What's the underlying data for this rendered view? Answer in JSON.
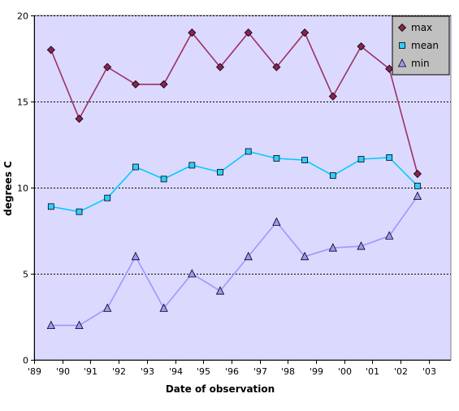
{
  "chart_data": {
    "type": "line",
    "xlabel": "Date of observation",
    "ylabel": "degrees C",
    "ylim": [
      0,
      20
    ],
    "xlim": [
      1989,
      2003.5
    ],
    "y_ticks": [
      0,
      5,
      10,
      15,
      20
    ],
    "x_ticks": [
      {
        "x": 1989,
        "label": "'89"
      },
      {
        "x": 1990,
        "label": "'90"
      },
      {
        "x": 1991,
        "label": "'91"
      },
      {
        "x": 1992,
        "label": "'92"
      },
      {
        "x": 1993,
        "label": "'93"
      },
      {
        "x": 1994,
        "label": "'94"
      },
      {
        "x": 1995,
        "label": "'95"
      },
      {
        "x": 1996,
        "label": "'96"
      },
      {
        "x": 1997,
        "label": "'97"
      },
      {
        "x": 1998,
        "label": "'98"
      },
      {
        "x": 1999,
        "label": "'99"
      },
      {
        "x": 2000,
        "label": "'00"
      },
      {
        "x": 2001,
        "label": "'01"
      },
      {
        "x": 2002,
        "label": "'02"
      },
      {
        "x": 2003,
        "label": "'03"
      }
    ],
    "grid": {
      "horizontal": true,
      "style": "dotted"
    },
    "plot_background": "#dcd9ff",
    "legend_position": "top-right",
    "x": [
      1989.6,
      1990.6,
      1991.6,
      1992.6,
      1993.6,
      1994.6,
      1995.6,
      1996.6,
      1997.6,
      1998.6,
      1999.6,
      2000.6,
      2001.6,
      2002.6
    ],
    "series": [
      {
        "name": "max",
        "color": "#8b2252",
        "line_color": "#993366",
        "marker": "diamond",
        "values": [
          18,
          14,
          17,
          16,
          16,
          19,
          17,
          19,
          17,
          19,
          15.3,
          18.2,
          16.9,
          10.8
        ]
      },
      {
        "name": "mean",
        "color": "#33ccff",
        "line_color": "#00ccff",
        "marker": "square",
        "values": [
          8.9,
          8.6,
          9.4,
          11.2,
          10.5,
          11.3,
          10.9,
          12.1,
          11.7,
          11.6,
          10.7,
          11.65,
          11.75,
          10.1
        ]
      },
      {
        "name": "min",
        "color": "#9999ff",
        "line_color": "#9999ff",
        "marker": "triangle",
        "values": [
          2,
          2,
          3,
          6,
          3,
          5,
          4,
          6,
          8,
          6,
          6.5,
          6.6,
          7.2,
          9.5
        ]
      }
    ]
  }
}
